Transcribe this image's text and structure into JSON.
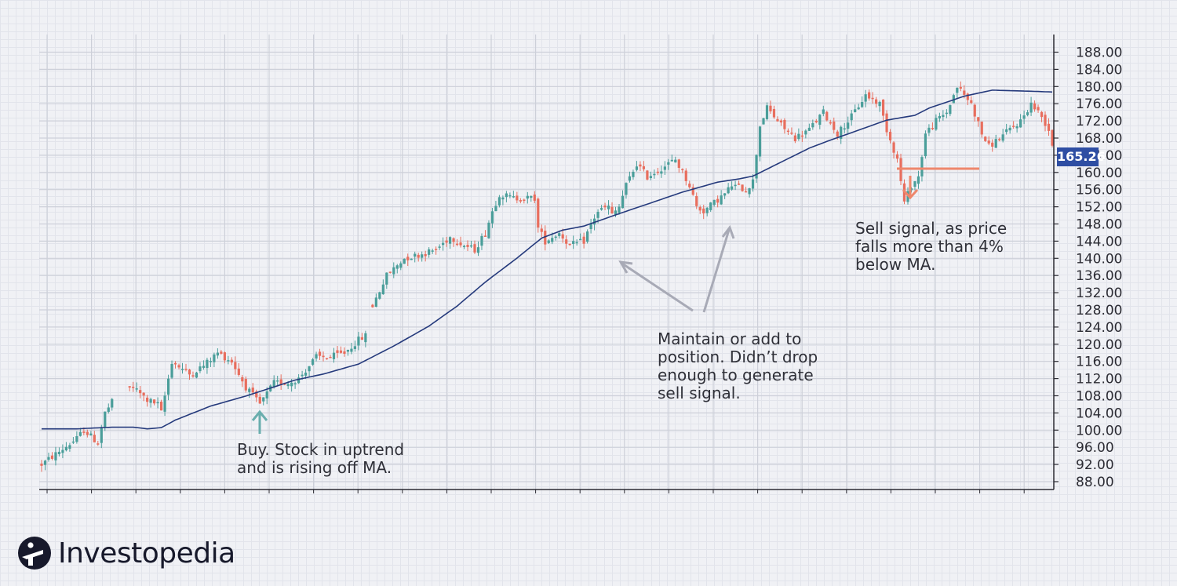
{
  "brand": {
    "name": "Investopedia",
    "logo_icon": "investopedia-i-circle-icon"
  },
  "colors": {
    "up": "#4a9e9a",
    "down": "#e86e5e",
    "ma_line": "#253a7c",
    "badge": "#2e4ea3",
    "arrow_gray": "#a8aab6",
    "arrow_teal": "#6aaeae",
    "signal_orange": "#ee876c"
  },
  "current_price": "165.26",
  "annotations": {
    "buy": [
      "Buy. Stock in uptrend",
      "and is rising off MA."
    ],
    "maintain": [
      "Maintain or add to",
      "position. Didn’t drop",
      "enough to generate",
      "sell signal."
    ],
    "sell": [
      "Sell signal, as price",
      "falls more than 4%",
      "below MA."
    ]
  },
  "chart_data": {
    "type": "candlestick",
    "title": "",
    "xlabel": "",
    "ylabel": "",
    "ylim": [
      86,
      190
    ],
    "y_ticks": [
      "188.00",
      "184.00",
      "180.00",
      "176.00",
      "172.00",
      "168.00",
      "164.00",
      "160.00",
      "156.00",
      "152.00",
      "148.00",
      "144.00",
      "140.00",
      "136.00",
      "132.00",
      "128.00",
      "124.00",
      "120.00",
      "116.00",
      "112.00",
      "108.00",
      "104.00",
      "100.00",
      "96.00",
      "92.00",
      "88.00"
    ],
    "grid": true,
    "num_bars": 230,
    "price_path": [
      [
        0,
        92
      ],
      [
        10,
        98
      ],
      [
        12,
        100
      ],
      [
        16,
        97
      ],
      [
        18,
        104
      ],
      [
        22,
        109
      ],
      [
        26,
        110
      ],
      [
        30,
        107
      ],
      [
        33,
        106
      ],
      [
        34,
        104
      ],
      [
        37,
        116
      ],
      [
        42,
        113
      ],
      [
        46,
        115
      ],
      [
        50,
        118
      ],
      [
        54,
        116
      ],
      [
        56,
        113
      ],
      [
        58,
        110
      ],
      [
        60,
        108
      ],
      [
        62,
        106
      ],
      [
        66,
        111
      ],
      [
        70,
        111
      ],
      [
        73,
        112
      ],
      [
        75,
        114
      ],
      [
        78,
        117
      ],
      [
        82,
        117
      ],
      [
        86,
        118
      ],
      [
        90,
        121
      ],
      [
        92,
        122
      ],
      [
        94,
        129
      ],
      [
        98,
        136
      ],
      [
        103,
        140
      ],
      [
        108,
        141
      ],
      [
        112,
        142
      ],
      [
        116,
        145
      ],
      [
        120,
        143
      ],
      [
        123,
        142
      ],
      [
        126,
        146
      ],
      [
        128,
        151
      ],
      [
        130,
        155
      ],
      [
        134,
        154
      ],
      [
        138,
        154
      ],
      [
        140,
        154
      ],
      [
        141,
        147
      ],
      [
        143,
        144
      ],
      [
        147,
        146
      ],
      [
        150,
        143
      ],
      [
        154,
        144
      ],
      [
        156,
        148
      ],
      [
        158,
        151
      ],
      [
        161,
        152
      ],
      [
        162,
        150
      ],
      [
        164,
        152
      ],
      [
        166,
        157
      ],
      [
        169,
        162
      ],
      [
        172,
        159
      ],
      [
        176,
        161
      ],
      [
        178,
        162
      ],
      [
        180,
        163
      ],
      [
        182,
        160
      ],
      [
        184,
        157
      ],
      [
        186,
        152
      ],
      [
        188,
        151
      ],
      [
        191,
        153
      ],
      [
        194,
        155
      ],
      [
        196,
        157
      ],
      [
        200,
        156
      ],
      [
        202,
        158
      ],
      [
        204,
        171
      ],
      [
        206,
        175
      ],
      [
        210,
        171
      ],
      [
        214,
        168
      ],
      [
        218,
        170
      ],
      [
        222,
        174
      ],
      [
        226,
        169
      ],
      [
        230,
        173
      ],
      [
        234,
        178
      ],
      [
        238,
        176
      ],
      [
        240,
        170
      ],
      [
        243,
        163
      ],
      [
        245,
        153
      ],
      [
        247,
        157
      ],
      [
        249,
        159
      ],
      [
        251,
        169
      ],
      [
        254,
        172
      ],
      [
        257,
        174
      ],
      [
        260,
        180
      ],
      [
        262,
        178
      ],
      [
        264,
        176
      ],
      [
        267,
        169
      ],
      [
        269,
        166
      ],
      [
        272,
        168
      ],
      [
        275,
        170
      ],
      [
        278,
        172
      ],
      [
        281,
        176
      ],
      [
        284,
        173
      ],
      [
        286,
        170
      ],
      [
        288,
        163
      ]
    ],
    "ma_path": [
      [
        0,
        100.3
      ],
      [
        10,
        100.3
      ],
      [
        20,
        100.7
      ],
      [
        26,
        100.7
      ],
      [
        30,
        100.3
      ],
      [
        34,
        100.6
      ],
      [
        38,
        102.5
      ],
      [
        48,
        106
      ],
      [
        58,
        108.5
      ],
      [
        65,
        110.5
      ],
      [
        72,
        112.5
      ],
      [
        80,
        114
      ],
      [
        90,
        116.5
      ],
      [
        100,
        121
      ],
      [
        110,
        126
      ],
      [
        118,
        131
      ],
      [
        126,
        137
      ],
      [
        135,
        143
      ],
      [
        142,
        148
      ],
      [
        148,
        150
      ],
      [
        154,
        151
      ],
      [
        162,
        153.5
      ],
      [
        172,
        156.5
      ],
      [
        182,
        159.5
      ],
      [
        192,
        162
      ],
      [
        198,
        162.8
      ],
      [
        202,
        163.5
      ],
      [
        210,
        167
      ],
      [
        218,
        170.5
      ],
      [
        224,
        172.5
      ],
      [
        232,
        175
      ],
      [
        240,
        177.5
      ],
      [
        248,
        178.7
      ],
      [
        252,
        180.5
      ],
      [
        262,
        183.5
      ],
      [
        270,
        185
      ],
      [
        282,
        184.7
      ],
      [
        288,
        184.5
      ]
    ],
    "ma_value_scale": 0.931,
    "signals": [
      {
        "type": "buy",
        "price": 108
      },
      {
        "type": "hold",
        "price": 143
      },
      {
        "type": "hold",
        "price": 150
      },
      {
        "type": "sell",
        "price": 161
      }
    ]
  }
}
